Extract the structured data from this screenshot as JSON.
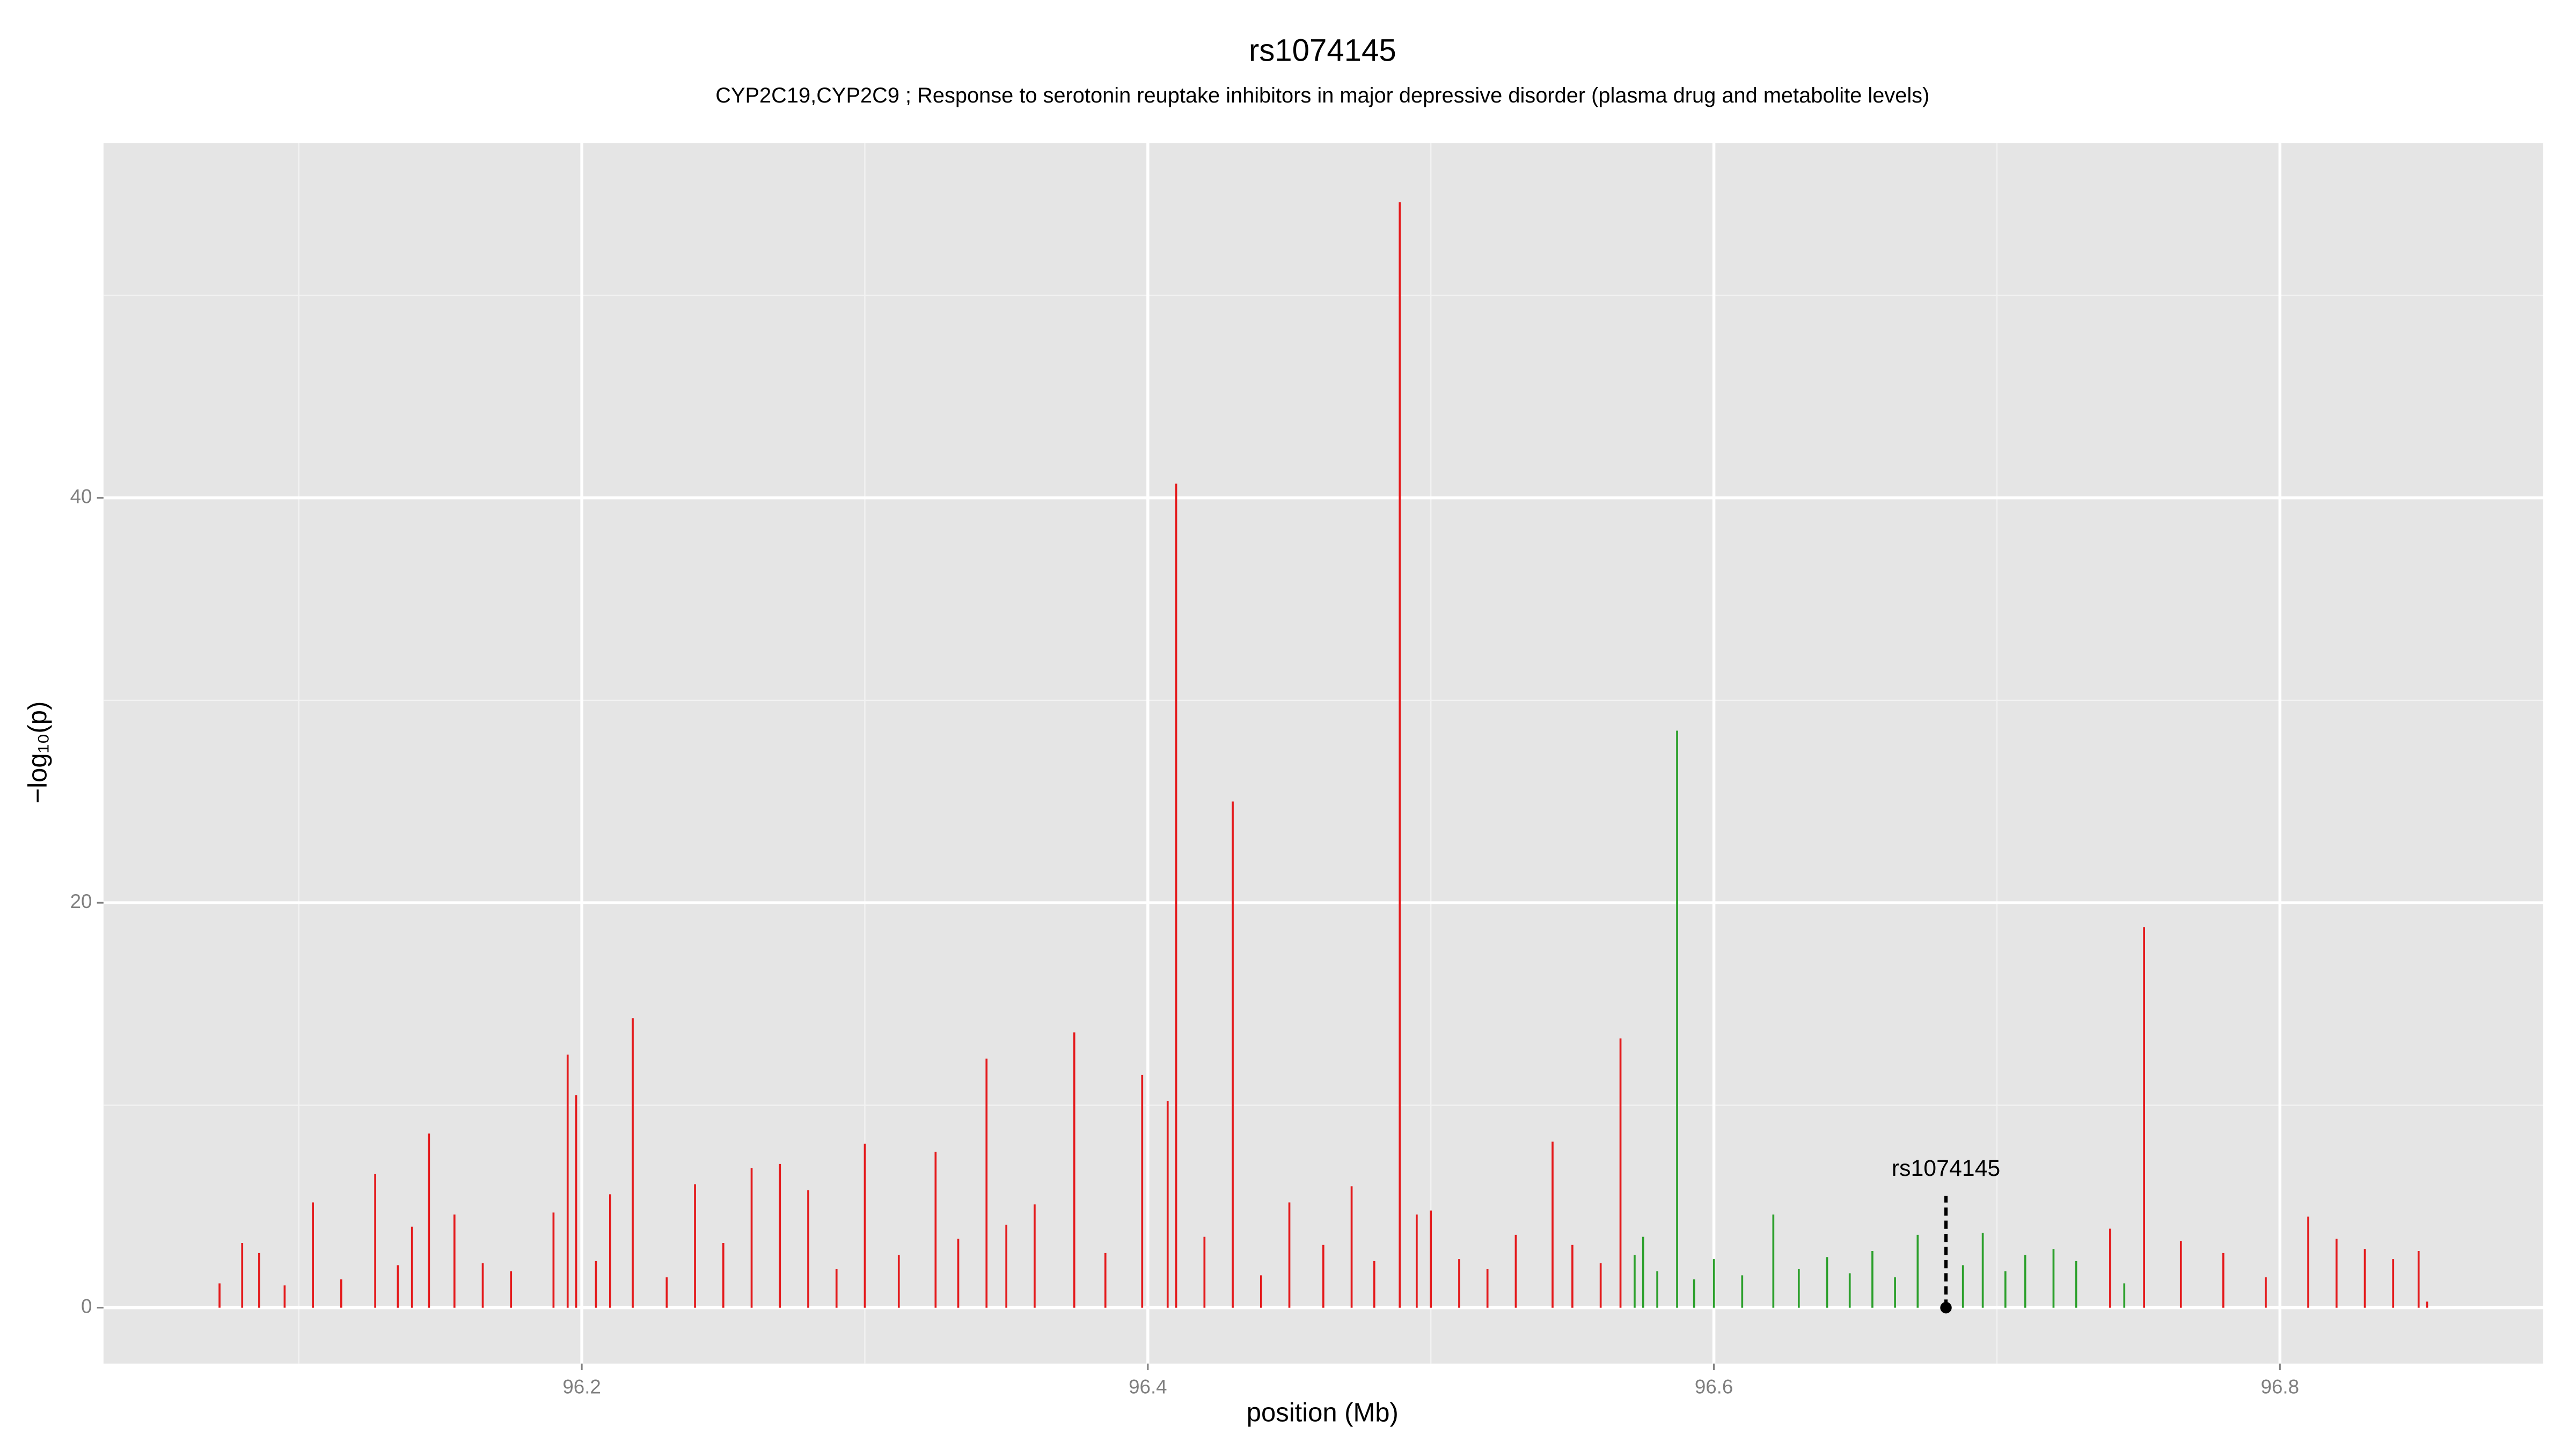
{
  "chart_data": {
    "type": "spike",
    "title": "rs1074145",
    "subtitle": "CYP2C19,CYP2C9 ; Response to serotonin reuptake inhibitors in major depressive disorder (plasma drug and metabolite levels)",
    "x_label": "position (Mb)",
    "y_label": "−log₁₀(p)",
    "xlim": [
      96.031,
      96.893
    ],
    "xticks": [
      96.2,
      96.4,
      96.6,
      96.8
    ],
    "xminor": [
      96.1,
      96.3,
      96.5,
      96.7
    ],
    "ylim": [
      -2.76,
      57.53
    ],
    "yticks": [
      0,
      20,
      40
    ],
    "yminor": [
      10,
      30,
      50
    ],
    "grid": true,
    "series": [
      {
        "name": "red",
        "color": "#e41a1c",
        "x": [
          96.072,
          96.08,
          96.086,
          96.095,
          96.105,
          96.115,
          96.127,
          96.135,
          96.14,
          96.146,
          96.155,
          96.165,
          96.175,
          96.19,
          96.195,
          96.198,
          96.205,
          96.21,
          96.218,
          96.23,
          96.24,
          96.25,
          96.26,
          96.27,
          96.28,
          96.29,
          96.3,
          96.312,
          96.325,
          96.333,
          96.343,
          96.35,
          96.36,
          96.374,
          96.385,
          96.398,
          96.407,
          96.41,
          96.42,
          96.43,
          96.44,
          96.45,
          96.462,
          96.472,
          96.48,
          96.489,
          96.495,
          96.5,
          96.51,
          96.52,
          96.53,
          96.543,
          96.55,
          96.56,
          96.567,
          96.74,
          96.752,
          96.765,
          96.78,
          96.795,
          96.81,
          96.82,
          96.83,
          96.84,
          96.849,
          96.852
        ],
        "values": [
          1.2,
          3.2,
          2.7,
          1.1,
          5.2,
          1.4,
          6.6,
          2.1,
          4,
          8.6,
          4.6,
          2.2,
          1.8,
          4.7,
          12.5,
          10.5,
          2.3,
          5.6,
          14.3,
          1.5,
          6.1,
          3.2,
          6.9,
          7.1,
          5.8,
          1.9,
          8.1,
          2.6,
          7.7,
          3.4,
          12.3,
          4.1,
          5.1,
          13.6,
          2.7,
          11.5,
          10.2,
          40.7,
          3.5,
          25,
          1.6,
          5.2,
          3.1,
          6,
          2.3,
          54.6,
          4.6,
          4.8,
          2.4,
          1.9,
          3.6,
          8.2,
          3.1,
          2.2,
          13.3,
          3.9,
          18.8,
          3.3,
          2.7,
          1.5,
          4.5,
          3.4,
          2.9,
          2.4,
          2.8,
          0.3
        ]
      },
      {
        "name": "green",
        "color": "#2ca02c",
        "x": [
          96.572,
          96.575,
          96.58,
          96.587,
          96.593,
          96.6,
          96.61,
          96.621,
          96.63,
          96.64,
          96.648,
          96.656,
          96.664,
          96.672,
          96.688,
          96.695,
          96.703,
          96.71,
          96.72,
          96.728,
          96.745
        ],
        "values": [
          2.6,
          3.5,
          1.8,
          28.5,
          1.4,
          2.4,
          1.6,
          4.6,
          1.9,
          2.5,
          1.7,
          2.8,
          1.5,
          3.6,
          2.1,
          3.7,
          1.8,
          2.6,
          2.9,
          2.3,
          1.2
        ]
      }
    ],
    "annotation": {
      "label": "rs1074145",
      "x": 96.682,
      "y": 0
    }
  }
}
